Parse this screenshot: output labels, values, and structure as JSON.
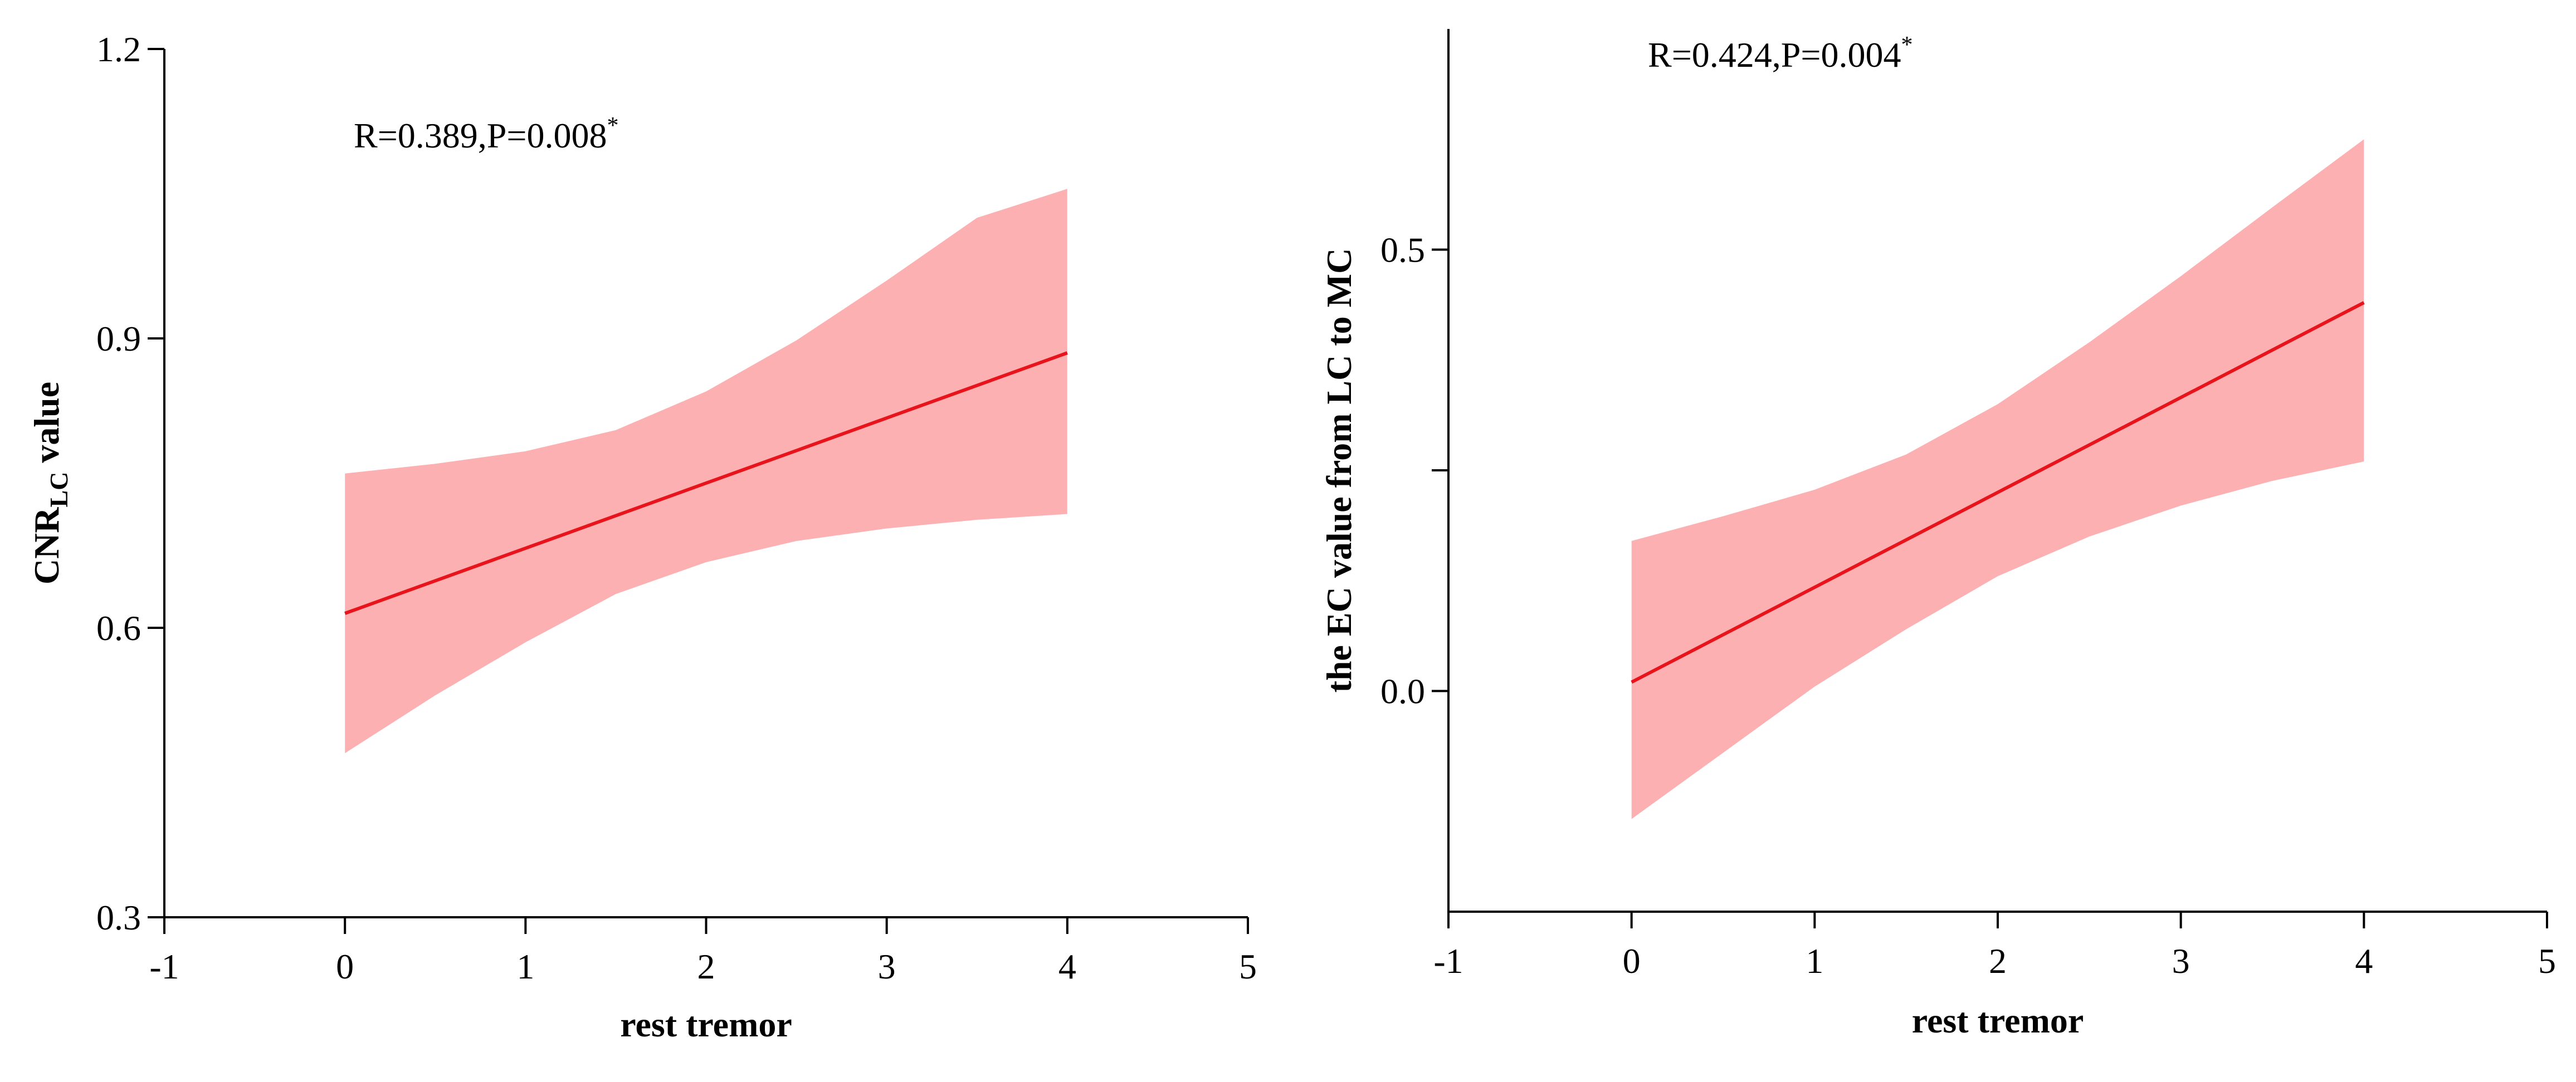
{
  "chart_data": [
    {
      "type": "line",
      "xlabel": "rest tremor",
      "ylabel": {
        "main": "CNR",
        "subscript": "LC",
        "suffix": " value"
      },
      "annotation": {
        "text": "R=0.389,P=0.008",
        "superscript": "*"
      },
      "xlim": [
        -1,
        5
      ],
      "ylim": [
        0.3,
        1.2
      ],
      "x_ticks": [
        -1,
        0,
        1,
        2,
        3,
        4,
        5
      ],
      "y_ticks": [
        0.3,
        0.6,
        0.9,
        1.2
      ],
      "y_tick_labels": [
        "0.3",
        "0.6",
        "0.9",
        "1.2"
      ],
      "series": [
        {
          "kind": "line",
          "color": "#e8131b",
          "x": [
            0,
            4
          ],
          "y": [
            0.615,
            0.885
          ]
        },
        {
          "kind": "band",
          "color": "#fdb0b1",
          "x": [
            0,
            0.5,
            1,
            1.5,
            2,
            2.5,
            3,
            3.5,
            4
          ],
          "y_lower": [
            0.47,
            0.53,
            0.585,
            0.635,
            0.668,
            0.69,
            0.703,
            0.712,
            0.718
          ],
          "y_upper": [
            0.76,
            0.77,
            0.783,
            0.805,
            0.845,
            0.898,
            0.96,
            1.025,
            1.055
          ]
        }
      ]
    },
    {
      "type": "line",
      "xlabel": "rest tremor",
      "ylabel": {
        "main": "the EC value from LC to MC",
        "subscript": "",
        "suffix": ""
      },
      "annotation": {
        "text": "R=0.424,P=0.004",
        "superscript": "*"
      },
      "xlim": [
        -1,
        5
      ],
      "ylim": [
        -0.25,
        0.75
      ],
      "x_ticks": [
        -1,
        0,
        1,
        2,
        3,
        4,
        5
      ],
      "y_ticks": [
        0.0,
        0.25,
        0.5
      ],
      "y_tick_labels": [
        "0.0",
        "",
        "0.5"
      ],
      "series": [
        {
          "kind": "line",
          "color": "#e8131b",
          "x": [
            0,
            4
          ],
          "y": [
            0.01,
            0.44
          ]
        },
        {
          "kind": "band",
          "color": "#fdb0b1",
          "x": [
            0,
            0.5,
            1,
            1.5,
            2,
            2.5,
            3,
            3.5,
            4
          ],
          "y_lower": [
            -0.145,
            -0.07,
            0.005,
            0.07,
            0.13,
            0.175,
            0.21,
            0.238,
            0.26
          ],
          "y_upper": [
            0.17,
            0.198,
            0.228,
            0.268,
            0.325,
            0.395,
            0.47,
            0.548,
            0.625
          ]
        }
      ]
    }
  ]
}
